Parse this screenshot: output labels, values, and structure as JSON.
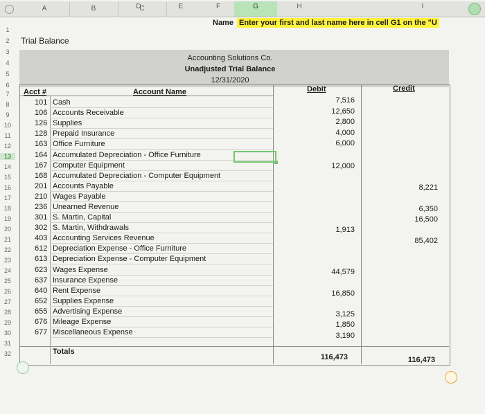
{
  "columns": [
    "A",
    "B",
    "C",
    "D",
    "E",
    "F",
    "G",
    "H",
    "I"
  ],
  "header_row": {
    "name_label": "Name",
    "name_instruction": "Enter your first and last name here in cell G1 on the \"U"
  },
  "sheet_title": "Trial Balance",
  "report": {
    "company": "Accounting Solutions Co.",
    "report_name": "Unadjusted Trial Balance",
    "date": "12/31/2020"
  },
  "headers": {
    "acct": "Acct #",
    "account_name": "Account Name",
    "debit": "Debit",
    "credit": "Credit"
  },
  "rows": [
    {
      "acct": "101",
      "name": "Cash",
      "debit": "7,516",
      "credit": ""
    },
    {
      "acct": "106",
      "name": "Accounts Receivable",
      "debit": "12,650",
      "credit": ""
    },
    {
      "acct": "126",
      "name": "Supplies",
      "debit": "2,800",
      "credit": ""
    },
    {
      "acct": "128",
      "name": "Prepaid Insurance",
      "debit": "4,000",
      "credit": ""
    },
    {
      "acct": "163",
      "name": "Office Furniture",
      "debit": "6,000",
      "credit": ""
    },
    {
      "acct": "164",
      "name": "Accumulated Depreciation - Office Furniture",
      "debit": "",
      "credit": ""
    },
    {
      "acct": "167",
      "name": "Computer Equipment",
      "debit": "12,000",
      "credit": ""
    },
    {
      "acct": "168",
      "name": "Accumulated Depreciation - Computer Equipment",
      "debit": "",
      "credit": ""
    },
    {
      "acct": "201",
      "name": "Accounts Payable",
      "debit": "",
      "credit": "8,221"
    },
    {
      "acct": "210",
      "name": "Wages Payable",
      "debit": "",
      "credit": ""
    },
    {
      "acct": "236",
      "name": "Unearned Revenue",
      "debit": "",
      "credit": "6,350"
    },
    {
      "acct": "301",
      "name": "S. Martin, Capital",
      "debit": "",
      "credit": "16,500"
    },
    {
      "acct": "302",
      "name": "S. Martin, Withdrawals",
      "debit": "1,913",
      "credit": ""
    },
    {
      "acct": "403",
      "name": "Accounting Services Revenue",
      "debit": "",
      "credit": "85,402"
    },
    {
      "acct": "612",
      "name": "Depreciation Expense - Office Furniture",
      "debit": "",
      "credit": ""
    },
    {
      "acct": "613",
      "name": "Depreciation Expense - Computer Equipment",
      "debit": "",
      "credit": ""
    },
    {
      "acct": "623",
      "name": "Wages Expense",
      "debit": "44,579",
      "credit": ""
    },
    {
      "acct": "637",
      "name": "Insurance Expense",
      "debit": "",
      "credit": ""
    },
    {
      "acct": "640",
      "name": "Rent Expense",
      "debit": "16,850",
      "credit": ""
    },
    {
      "acct": "652",
      "name": "Supplies Expense",
      "debit": "",
      "credit": ""
    },
    {
      "acct": "655",
      "name": "Advertising Expense",
      "debit": "3,125",
      "credit": ""
    },
    {
      "acct": "676",
      "name": "Mileage Expense",
      "debit": "1,850",
      "credit": ""
    },
    {
      "acct": "677",
      "name": "Miscellaneous Expense",
      "debit": "3,190",
      "credit": ""
    }
  ],
  "totals": {
    "label": "Totals",
    "debit": "116,473",
    "credit": "116,473"
  },
  "row_numbers": [
    "1",
    "2",
    "3",
    "4",
    "5",
    "6",
    "7",
    "8",
    "9",
    "10",
    "11",
    "12",
    "13",
    "14",
    "15",
    "16",
    "17",
    "18",
    "19",
    "20",
    "21",
    "22",
    "23",
    "24",
    "25",
    "26",
    "27",
    "28",
    "29",
    "30",
    "31",
    "32"
  ],
  "colors": {
    "highlight_yellow": "#fff23a",
    "selection_green": "#6ec76e",
    "band_gray": "#d1d1cd"
  }
}
